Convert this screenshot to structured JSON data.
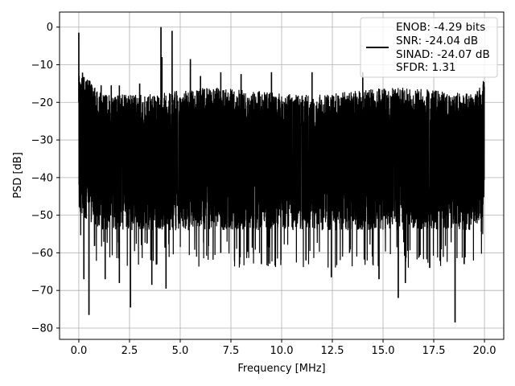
{
  "chart_data": {
    "type": "line",
    "title": "",
    "xlabel": "Frequency [MHz]",
    "ylabel": "PSD [dB]",
    "xlim": [
      -0.95,
      20.95
    ],
    "ylim": [
      -83,
      4
    ],
    "xticks": [
      0.0,
      2.5,
      5.0,
      7.5,
      10.0,
      12.5,
      15.0,
      17.5,
      20.0
    ],
    "xtick_labels": [
      "0.0",
      "2.5",
      "5.0",
      "7.5",
      "10.0",
      "12.5",
      "15.0",
      "17.5",
      "20.0"
    ],
    "yticks": [
      0,
      -10,
      -20,
      -30,
      -40,
      -50,
      -60,
      -70,
      -80
    ],
    "ytick_labels": [
      "0",
      "−10",
      "−20",
      "−30",
      "−40",
      "−50",
      "−60",
      "−70",
      "−80"
    ],
    "grid": true,
    "legend_position": "top-right",
    "legend_lines": [
      "ENOB: -4.29 bits",
      "SNR: -24.04 dB",
      "SINAD: -24.07 dB",
      "SFDR: 1.31"
    ],
    "series": [
      {
        "color": "#000000",
        "x_range": [
          0.0,
          20.0
        ],
        "noise_band_dB": [
          -52,
          -17
        ],
        "peaks": [
          {
            "x": 0.0,
            "y": -1.5
          },
          {
            "x": 4.05,
            "y": 0.0
          },
          {
            "x": 4.6,
            "y": -1.0
          },
          {
            "x": 4.1,
            "y": -8.0
          },
          {
            "x": 5.5,
            "y": -8.5
          },
          {
            "x": 1.1,
            "y": -15.5
          },
          {
            "x": 1.6,
            "y": -15.5
          },
          {
            "x": 2.0,
            "y": -15.5
          },
          {
            "x": 3.0,
            "y": -15.0
          },
          {
            "x": 6.0,
            "y": -13.0
          },
          {
            "x": 7.0,
            "y": -12.0
          },
          {
            "x": 8.0,
            "y": -12.5
          },
          {
            "x": 9.5,
            "y": -12.0
          },
          {
            "x": 11.5,
            "y": -12.0
          },
          {
            "x": 14.0,
            "y": -12.0
          }
        ],
        "dips": [
          {
            "x": 0.5,
            "y": -76.5
          },
          {
            "x": 0.25,
            "y": -67.0
          },
          {
            "x": 1.3,
            "y": -67.0
          },
          {
            "x": 2.0,
            "y": -68.0
          },
          {
            "x": 2.55,
            "y": -74.5
          },
          {
            "x": 3.6,
            "y": -68.5
          },
          {
            "x": 4.3,
            "y": -69.5
          },
          {
            "x": 7.0,
            "y": -60.0
          },
          {
            "x": 9.0,
            "y": -63.0
          },
          {
            "x": 12.45,
            "y": -66.5
          },
          {
            "x": 14.8,
            "y": -67.0
          },
          {
            "x": 15.75,
            "y": -72.0
          },
          {
            "x": 16.1,
            "y": -68.0
          },
          {
            "x": 17.3,
            "y": -64.0
          },
          {
            "x": 18.55,
            "y": -78.5
          },
          {
            "x": 19.0,
            "y": -63.0
          },
          {
            "x": 11.2,
            "y": -62.0
          }
        ]
      }
    ]
  }
}
